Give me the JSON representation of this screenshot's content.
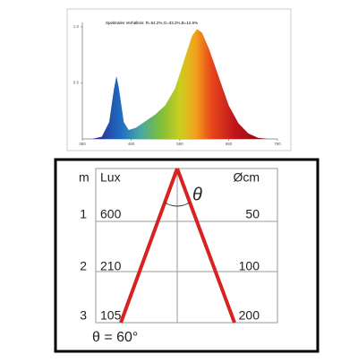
{
  "spectrum": {
    "type": "area",
    "title": "Spektrales Verhältnis: R=54.2%,G=33.2%,B=12.6%.",
    "x": [
      400,
      420,
      435,
      445,
      450,
      455,
      465,
      475,
      490,
      510,
      530,
      550,
      570,
      590,
      605,
      615,
      625,
      640,
      660,
      680,
      700,
      720,
      740,
      760
    ],
    "values": [
      0,
      0.02,
      0.15,
      0.45,
      0.56,
      0.45,
      0.15,
      0.08,
      0.1,
      0.16,
      0.22,
      0.3,
      0.45,
      0.72,
      0.92,
      0.98,
      0.95,
      0.8,
      0.55,
      0.3,
      0.14,
      0.05,
      0.01,
      0
    ],
    "xlim": [
      380,
      780
    ],
    "ylim": [
      0,
      1
    ],
    "xticks": [
      380,
      480,
      580,
      680,
      780
    ],
    "yticks": [
      {
        "value": 0.5,
        "label": "0.5"
      },
      {
        "value": 1,
        "label": "1.0"
      }
    ]
  },
  "beam": {
    "header": {
      "rows": "m",
      "lux": "Lux",
      "diameter": "Øcm"
    },
    "angle_symbol": "θ",
    "rows": [
      {
        "m": 1,
        "lux": 600,
        "cm": 50
      },
      {
        "m": 2,
        "lux": 210,
        "cm": 100
      },
      {
        "m": 3,
        "lux": 105,
        "cm": 200
      }
    ],
    "footer": "θ = 60°"
  }
}
